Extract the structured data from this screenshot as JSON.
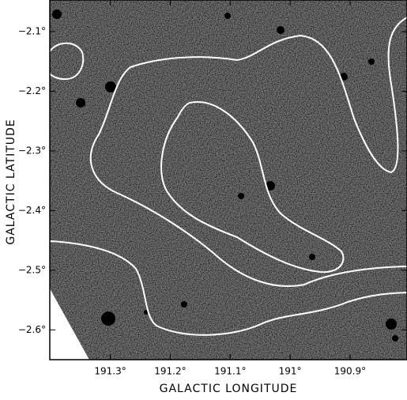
{
  "chart_data": {
    "type": "image",
    "xlabel": "GALACTIC LONGITUDE",
    "ylabel": "GALACTIC LATITUDE",
    "xlim": [
      191.401,
      190.805
    ],
    "ylim": [
      -2.65,
      -2.047
    ],
    "xticks": [
      {
        "value": 191.3,
        "label": "191.3°"
      },
      {
        "value": 191.2,
        "label": "191.2°"
      },
      {
        "value": 191.1,
        "label": "191.1°"
      },
      {
        "value": 191,
        "label": "191°"
      },
      {
        "value": 190.9,
        "label": "190.9°"
      }
    ],
    "yticks": [
      {
        "value": -2.1,
        "label": "−2.1°"
      },
      {
        "value": -2.2,
        "label": "−2.2°"
      },
      {
        "value": -2.3,
        "label": "−2.3°"
      },
      {
        "value": -2.4,
        "label": "−2.4°"
      },
      {
        "value": -2.5,
        "label": "−2.5°"
      },
      {
        "value": -2.6,
        "label": "−2.6°"
      }
    ]
  }
}
